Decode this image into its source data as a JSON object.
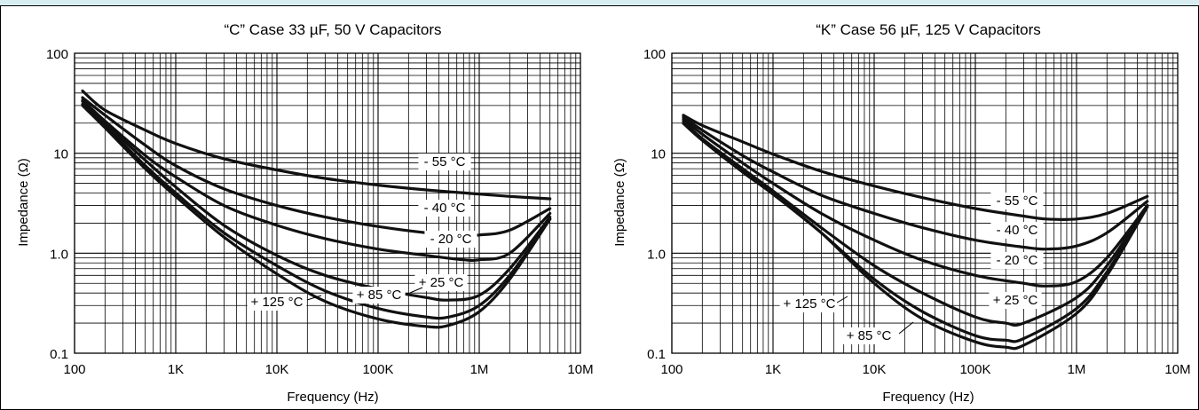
{
  "chart_data": [
    {
      "type": "line",
      "title": "“C” Case 33 µF, 50 V Capacitors",
      "xlabel": "Frequency (Hz)",
      "ylabel": "Impedance (Ω)",
      "x_scale": "log",
      "y_scale": "log",
      "xlim": [
        100,
        10000000
      ],
      "ylim": [
        0.1,
        100
      ],
      "x_ticks": [
        "100",
        "1K",
        "10K",
        "100K",
        "1M",
        "10M"
      ],
      "y_ticks": [
        "0.1",
        "1.0",
        "10",
        "100"
      ],
      "grid": true,
      "series": [
        {
          "name": "- 55 °C",
          "x": [
            120,
            200,
            500,
            1000,
            3000,
            10000,
            30000,
            100000,
            300000,
            1000000,
            2000000,
            5000000
          ],
          "y": [
            42,
            27,
            17,
            12.5,
            8.8,
            6.8,
            5.6,
            4.8,
            4.3,
            3.9,
            3.7,
            3.5
          ]
        },
        {
          "name": "- 40 °C",
          "x": [
            120,
            200,
            500,
            1000,
            3000,
            10000,
            30000,
            100000,
            300000,
            700000,
            1000000,
            2000000,
            5000000
          ],
          "y": [
            36,
            24,
            12,
            7.5,
            4.4,
            3.0,
            2.3,
            1.85,
            1.6,
            1.5,
            1.52,
            1.7,
            2.8
          ]
        },
        {
          "name": "- 20 °C",
          "x": [
            120,
            200,
            500,
            1000,
            3000,
            10000,
            30000,
            100000,
            300000,
            700000,
            1000000,
            2000000,
            5000000
          ],
          "y": [
            34,
            21,
            9.5,
            5.8,
            3.0,
            1.9,
            1.4,
            1.1,
            0.95,
            0.86,
            0.86,
            1.0,
            2.5
          ]
        },
        {
          "name": "+ 25 °C",
          "x": [
            120,
            200,
            500,
            1000,
            3000,
            10000,
            30000,
            100000,
            300000,
            500000,
            1000000,
            2000000,
            5000000
          ],
          "y": [
            33,
            20,
            8.5,
            4.6,
            1.9,
            0.95,
            0.6,
            0.44,
            0.36,
            0.34,
            0.38,
            0.7,
            2.3
          ]
        },
        {
          "name": "+ 85 °C",
          "x": [
            120,
            200,
            500,
            1000,
            3000,
            10000,
            30000,
            100000,
            300000,
            500000,
            1000000,
            2000000,
            5000000
          ],
          "y": [
            31,
            19,
            7.5,
            4.0,
            1.6,
            0.75,
            0.42,
            0.28,
            0.23,
            0.23,
            0.3,
            0.6,
            2.2
          ]
        },
        {
          "name": "+ 125 °C",
          "x": [
            120,
            200,
            500,
            1000,
            3000,
            10000,
            30000,
            100000,
            300000,
            500000,
            1000000,
            2000000,
            5000000
          ],
          "y": [
            30,
            18,
            7.0,
            3.7,
            1.45,
            0.62,
            0.33,
            0.22,
            0.185,
            0.19,
            0.26,
            0.55,
            2.2
          ]
        }
      ],
      "labels": [
        {
          "text": "- 55 °C",
          "series": "- 55 °C"
        },
        {
          "text": "- 40 °C",
          "series": "- 40 °C"
        },
        {
          "text": "- 20 °C",
          "series": "- 20 °C"
        },
        {
          "text": "+ 25 °C",
          "series": "+ 25 °C"
        },
        {
          "text": "+ 85 °C",
          "series": "+ 85 °C"
        },
        {
          "text": "+ 125 °C",
          "series": "+ 125 °C"
        }
      ]
    },
    {
      "type": "line",
      "title": "“K” Case 56 µF, 125 V Capacitors",
      "xlabel": "Frequency (Hz)",
      "ylabel": "Impedance (Ω)",
      "x_scale": "log",
      "y_scale": "log",
      "xlim": [
        100,
        10000000
      ],
      "ylim": [
        0.1,
        100
      ],
      "x_ticks": [
        "100",
        "1K",
        "10K",
        "100K",
        "1M",
        "10M"
      ],
      "y_ticks": [
        "0.1",
        "1.0",
        "10",
        "100"
      ],
      "grid": true,
      "series": [
        {
          "name": "- 55 °C",
          "x": [
            130,
            200,
            500,
            1000,
            3000,
            10000,
            30000,
            100000,
            300000,
            500000,
            1000000,
            2000000,
            5000000
          ],
          "y": [
            24,
            19,
            13,
            9.8,
            6.6,
            4.7,
            3.6,
            2.8,
            2.35,
            2.2,
            2.2,
            2.5,
            3.7
          ]
        },
        {
          "name": "- 40 °C",
          "x": [
            130,
            200,
            500,
            1000,
            3000,
            10000,
            30000,
            100000,
            300000,
            500000,
            1000000,
            2000000,
            5000000
          ],
          "y": [
            23,
            17,
            9.5,
            6.5,
            3.8,
            2.5,
            1.8,
            1.35,
            1.15,
            1.1,
            1.18,
            1.6,
            3.3
          ]
        },
        {
          "name": "- 20 °C",
          "x": [
            130,
            200,
            500,
            1000,
            3000,
            10000,
            30000,
            100000,
            300000,
            500000,
            1000000,
            2000000,
            5000000
          ],
          "y": [
            22,
            15.5,
            8.0,
            5.0,
            2.5,
            1.35,
            0.85,
            0.6,
            0.5,
            0.47,
            0.52,
            0.9,
            3.0
          ]
        },
        {
          "name": "+ 25 °C",
          "x": [
            130,
            200,
            500,
            1000,
            3000,
            10000,
            30000,
            100000,
            200000,
            300000,
            1000000,
            2000000,
            5000000
          ],
          "y": [
            21,
            14,
            7.0,
            4.2,
            1.8,
            0.75,
            0.4,
            0.23,
            0.2,
            0.2,
            0.36,
            0.75,
            3.0
          ]
        },
        {
          "name": "+ 85 °C",
          "x": [
            130,
            200,
            500,
            1000,
            3000,
            10000,
            30000,
            100000,
            200000,
            300000,
            1000000,
            2000000,
            5000000
          ],
          "y": [
            20,
            13.5,
            6.5,
            3.9,
            1.6,
            0.55,
            0.26,
            0.15,
            0.135,
            0.14,
            0.28,
            0.65,
            2.9
          ]
        },
        {
          "name": "+ 125 °C",
          "x": [
            130,
            200,
            500,
            1000,
            3000,
            10000,
            30000,
            100000,
            200000,
            300000,
            1000000,
            2000000,
            5000000
          ],
          "y": [
            20,
            13.5,
            6.5,
            3.9,
            1.6,
            0.5,
            0.22,
            0.13,
            0.115,
            0.12,
            0.25,
            0.6,
            2.9
          ]
        }
      ],
      "labels": [
        {
          "text": "- 55 °C",
          "series": "- 55 °C"
        },
        {
          "text": "- 40 °C",
          "series": "- 40 °C"
        },
        {
          "text": "- 20 °C",
          "series": "- 20 °C"
        },
        {
          "text": "+ 25 °C",
          "series": "+ 25 °C"
        },
        {
          "text": "+ 125 °C",
          "series": "+ 125 °C"
        },
        {
          "text": "+ 85 °C",
          "series": "+ 85 °C"
        }
      ]
    }
  ]
}
